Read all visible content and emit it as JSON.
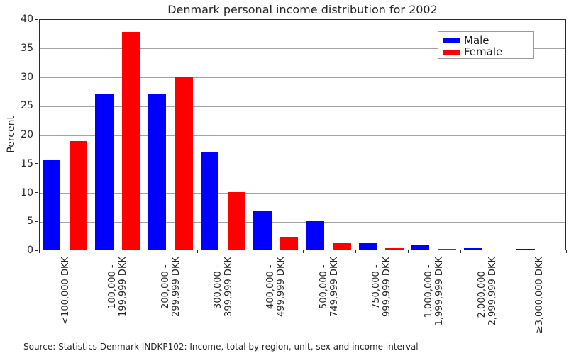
{
  "chart_data": {
    "type": "bar",
    "title": "Denmark personal income distribution for 2002",
    "xlabel": "",
    "ylabel": "Percent",
    "ylim": [
      0,
      40
    ],
    "ytick_step": 5,
    "grid": "horizontal gridlines on",
    "legend_position": "upper right inside plot",
    "categories": [
      "<100,000 DKK",
      "100,000 -\n199,999 DKK",
      "200,000 -\n299,999 DKK",
      "300,000 -\n399,999 DKK",
      "400,000 -\n499,999 DKK",
      "500,000 -\n749,999 DKK",
      "750,000 -\n999,999 DKK",
      "1,000,000 -\n1,999,999 DKK",
      "2,000,000 -\n2,999,999 DKK",
      "≥3,000,000 DKK"
    ],
    "series": [
      {
        "name": "Male",
        "color": "#0000ff",
        "values": [
          15.5,
          26.9,
          26.9,
          16.8,
          6.6,
          4.9,
          1.1,
          0.8,
          0.2,
          0.1
        ]
      },
      {
        "name": "Female",
        "color": "#ff0000",
        "values": [
          18.8,
          37.7,
          29.9,
          10.0,
          2.2,
          1.1,
          0.2,
          0.1,
          0.03,
          0.02
        ]
      }
    ],
    "axis_color": "#2b2b2b",
    "grid_color": "#a3a3a3",
    "source_note": "Source: Statistics Denmark INDKP102: Income, total by region, unit, sex and income interval"
  }
}
